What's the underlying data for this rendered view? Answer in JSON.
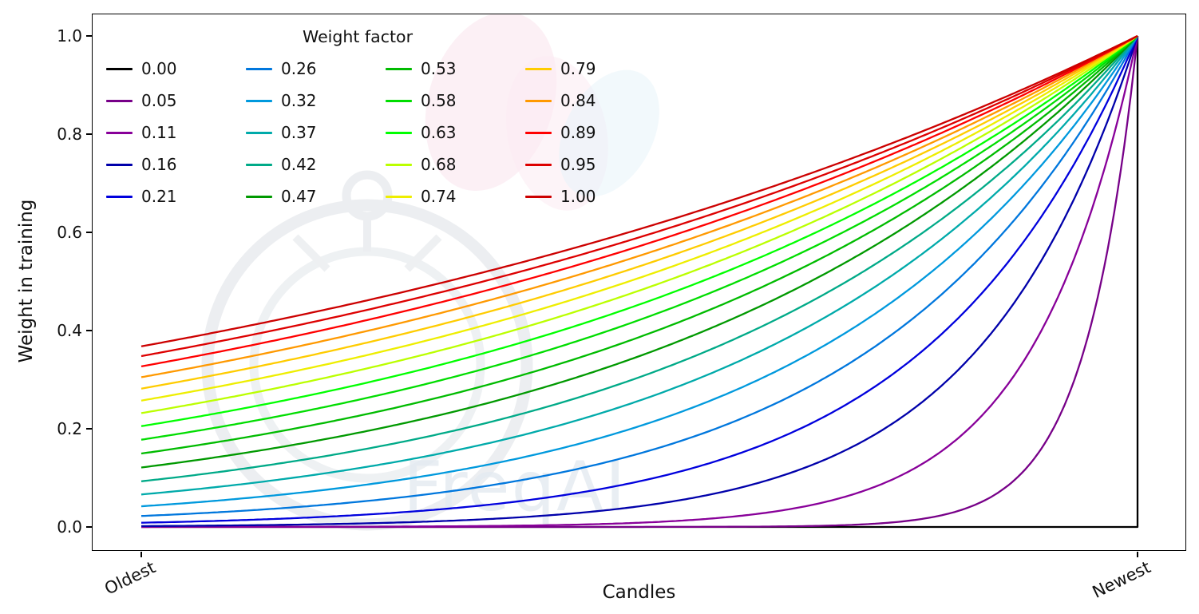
{
  "watermark": {
    "text": "FreqAI"
  },
  "chart_data": {
    "type": "line",
    "title": "",
    "xlabel": "Candles",
    "ylabel": "Weight in training",
    "x_axis": {
      "labels": [
        "Oldest",
        "Newest"
      ],
      "positions": [
        0,
        1
      ]
    },
    "y_ticks": [
      "0.0",
      "0.2",
      "0.4",
      "0.6",
      "0.8",
      "1.0"
    ],
    "xlim": [
      0,
      1
    ],
    "ylim": [
      0,
      1
    ],
    "grid": false,
    "legend": {
      "title": "Weight factor",
      "position": "upper left",
      "columns": 4,
      "fill_order": "column-major"
    },
    "curve_formula": "weight = exp(-(1 - x) / weight_factor), weight_factor 0 gives 0 everywhere except newest candle = 1",
    "x_samples": [
      0,
      0.1,
      0.2,
      0.3,
      0.4,
      0.5,
      0.6,
      0.7,
      0.8,
      0.9,
      1.0
    ],
    "series": [
      {
        "label": "0.00",
        "weight_factor": 0.0,
        "color": "#000000",
        "values": [
          0,
          0,
          0,
          0,
          0,
          0,
          0,
          0,
          0,
          0,
          1
        ]
      },
      {
        "label": "0.05",
        "weight_factor": 0.0526,
        "color": "#770088",
        "values": [
          0,
          0,
          0,
          0,
          0,
          0,
          0.001,
          0.003,
          0.022,
          0.15,
          1
        ]
      },
      {
        "label": "0.11",
        "weight_factor": 0.1053,
        "color": "#880099",
        "values": [
          0,
          0,
          0.001,
          0.001,
          0.003,
          0.009,
          0.022,
          0.058,
          0.15,
          0.387,
          1
        ]
      },
      {
        "label": "0.16",
        "weight_factor": 0.1579,
        "color": "#0000aa",
        "values": [
          0.002,
          0.003,
          0.006,
          0.012,
          0.022,
          0.042,
          0.079,
          0.15,
          0.282,
          0.531,
          1
        ]
      },
      {
        "label": "0.21",
        "weight_factor": 0.2105,
        "color": "#0000dd",
        "values": [
          0.009,
          0.014,
          0.022,
          0.036,
          0.058,
          0.093,
          0.15,
          0.24,
          0.387,
          0.622,
          1
        ]
      },
      {
        "label": "0.26",
        "weight_factor": 0.2632,
        "color": "#0077dd",
        "values": [
          0.022,
          0.033,
          0.048,
          0.07,
          0.102,
          0.15,
          0.219,
          0.32,
          0.468,
          0.684,
          1
        ]
      },
      {
        "label": "0.32",
        "weight_factor": 0.3158,
        "color": "#0099dd",
        "values": [
          0.042,
          0.058,
          0.079,
          0.109,
          0.15,
          0.205,
          0.282,
          0.387,
          0.531,
          0.729,
          1
        ]
      },
      {
        "label": "0.37",
        "weight_factor": 0.3684,
        "color": "#00aaaa",
        "values": [
          0.066,
          0.087,
          0.114,
          0.15,
          0.196,
          0.257,
          0.338,
          0.443,
          0.581,
          0.762,
          1
        ]
      },
      {
        "label": "0.42",
        "weight_factor": 0.4211,
        "color": "#00aa88",
        "values": [
          0.093,
          0.118,
          0.15,
          0.19,
          0.24,
          0.305,
          0.387,
          0.49,
          0.622,
          0.789,
          1
        ]
      },
      {
        "label": "0.47",
        "weight_factor": 0.4737,
        "color": "#009900",
        "values": [
          0.121,
          0.15,
          0.185,
          0.228,
          0.282,
          0.348,
          0.43,
          0.531,
          0.656,
          0.81,
          1
        ]
      },
      {
        "label": "0.53",
        "weight_factor": 0.5263,
        "color": "#00bb00",
        "values": [
          0.15,
          0.181,
          0.219,
          0.264,
          0.32,
          0.387,
          0.468,
          0.566,
          0.684,
          0.827,
          1
        ]
      },
      {
        "label": "0.58",
        "weight_factor": 0.5789,
        "color": "#00dd00",
        "values": [
          0.178,
          0.211,
          0.251,
          0.298,
          0.355,
          0.422,
          0.501,
          0.596,
          0.708,
          0.841,
          1
        ]
      },
      {
        "label": "0.63",
        "weight_factor": 0.6316,
        "color": "#00ff00",
        "values": [
          0.205,
          0.24,
          0.282,
          0.33,
          0.387,
          0.453,
          0.531,
          0.622,
          0.729,
          0.854,
          1
        ]
      },
      {
        "label": "0.68",
        "weight_factor": 0.6842,
        "color": "#bbff00",
        "values": [
          0.232,
          0.268,
          0.311,
          0.36,
          0.416,
          0.482,
          0.557,
          0.645,
          0.747,
          0.864,
          1
        ]
      },
      {
        "label": "0.74",
        "weight_factor": 0.7368,
        "color": "#eeee00",
        "values": [
          0.257,
          0.295,
          0.338,
          0.387,
          0.443,
          0.507,
          0.581,
          0.666,
          0.762,
          0.873,
          1
        ]
      },
      {
        "label": "0.79",
        "weight_factor": 0.7895,
        "color": "#ffcc00",
        "values": [
          0.282,
          0.32,
          0.363,
          0.412,
          0.468,
          0.531,
          0.602,
          0.684,
          0.776,
          0.881,
          1
        ]
      },
      {
        "label": "0.84",
        "weight_factor": 0.8421,
        "color": "#ff9900",
        "values": [
          0.305,
          0.343,
          0.387,
          0.436,
          0.49,
          0.552,
          0.622,
          0.7,
          0.789,
          0.888,
          1
        ]
      },
      {
        "label": "0.89",
        "weight_factor": 0.8947,
        "color": "#ff0000",
        "values": [
          0.327,
          0.366,
          0.409,
          0.457,
          0.511,
          0.572,
          0.64,
          0.715,
          0.8,
          0.894,
          1
        ]
      },
      {
        "label": "0.95",
        "weight_factor": 0.9474,
        "color": "#dd0000",
        "values": [
          0.348,
          0.387,
          0.43,
          0.478,
          0.531,
          0.59,
          0.656,
          0.729,
          0.81,
          0.9,
          1
        ]
      },
      {
        "label": "1.00",
        "weight_factor": 1.0,
        "color": "#cc0000",
        "values": [
          0.368,
          0.407,
          0.449,
          0.497,
          0.549,
          0.607,
          0.67,
          0.741,
          0.819,
          0.905,
          1
        ]
      }
    ]
  }
}
